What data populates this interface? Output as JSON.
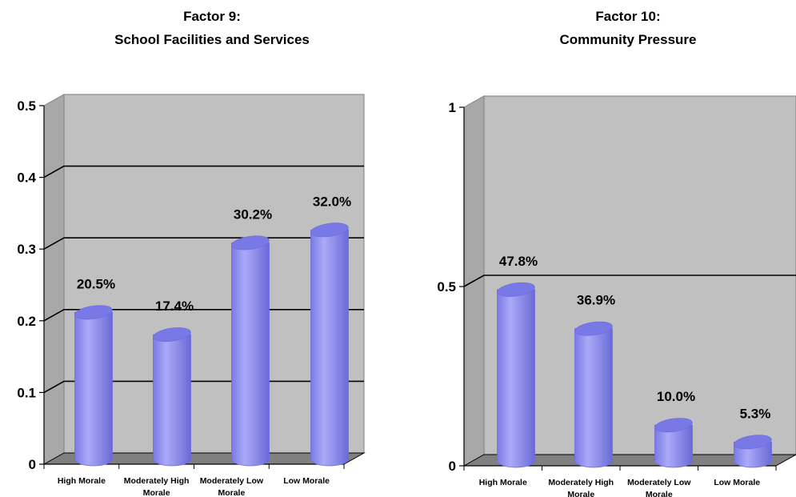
{
  "colors": {
    "wall": "#c0c0c0",
    "floor": "#808080",
    "bar": "#9a9af2",
    "bar_dark": "#6e6edc",
    "bar_top": "#7878e6",
    "gridline": "#000000"
  },
  "chart_data": [
    {
      "type": "bar",
      "title_lines": [
        "Factor 9:",
        "School Facilities and Services"
      ],
      "categories": [
        [
          "High Morale"
        ],
        [
          "Moderately High",
          "Morale"
        ],
        [
          "Moderately Low",
          "Morale"
        ],
        [
          "Low Morale"
        ]
      ],
      "values": [
        0.205,
        0.174,
        0.302,
        0.32
      ],
      "data_labels": [
        "20.5%",
        "17.4%",
        "30.2%",
        "32.0%"
      ],
      "ylim": [
        0,
        0.5
      ],
      "yticks": [
        0,
        0.1,
        0.2,
        0.3,
        0.4,
        0.5
      ],
      "ytick_labels": [
        "0",
        "0.1",
        "0.2",
        "0.3",
        "0.4",
        "0.5"
      ],
      "gridlines": [
        0.1,
        0.2,
        0.3,
        0.4
      ],
      "grid": true,
      "xlabel": "",
      "ylabel": ""
    },
    {
      "type": "bar",
      "title_lines": [
        "Factor 10:",
        "Community Pressure"
      ],
      "categories": [
        [
          "High Morale"
        ],
        [
          "Moderately High",
          "Morale"
        ],
        [
          "Moderately Low",
          "Morale"
        ],
        [
          "Low Morale"
        ]
      ],
      "values": [
        0.478,
        0.369,
        0.1,
        0.053
      ],
      "data_labels": [
        "47.8%",
        "36.9%",
        "10.0%",
        "5.3%"
      ],
      "ylim": [
        0,
        1
      ],
      "yticks": [
        0,
        0.5,
        1
      ],
      "ytick_labels": [
        "0",
        "0.5",
        "1"
      ],
      "gridlines": [
        0.5
      ],
      "grid": true,
      "xlabel": "",
      "ylabel": ""
    }
  ]
}
